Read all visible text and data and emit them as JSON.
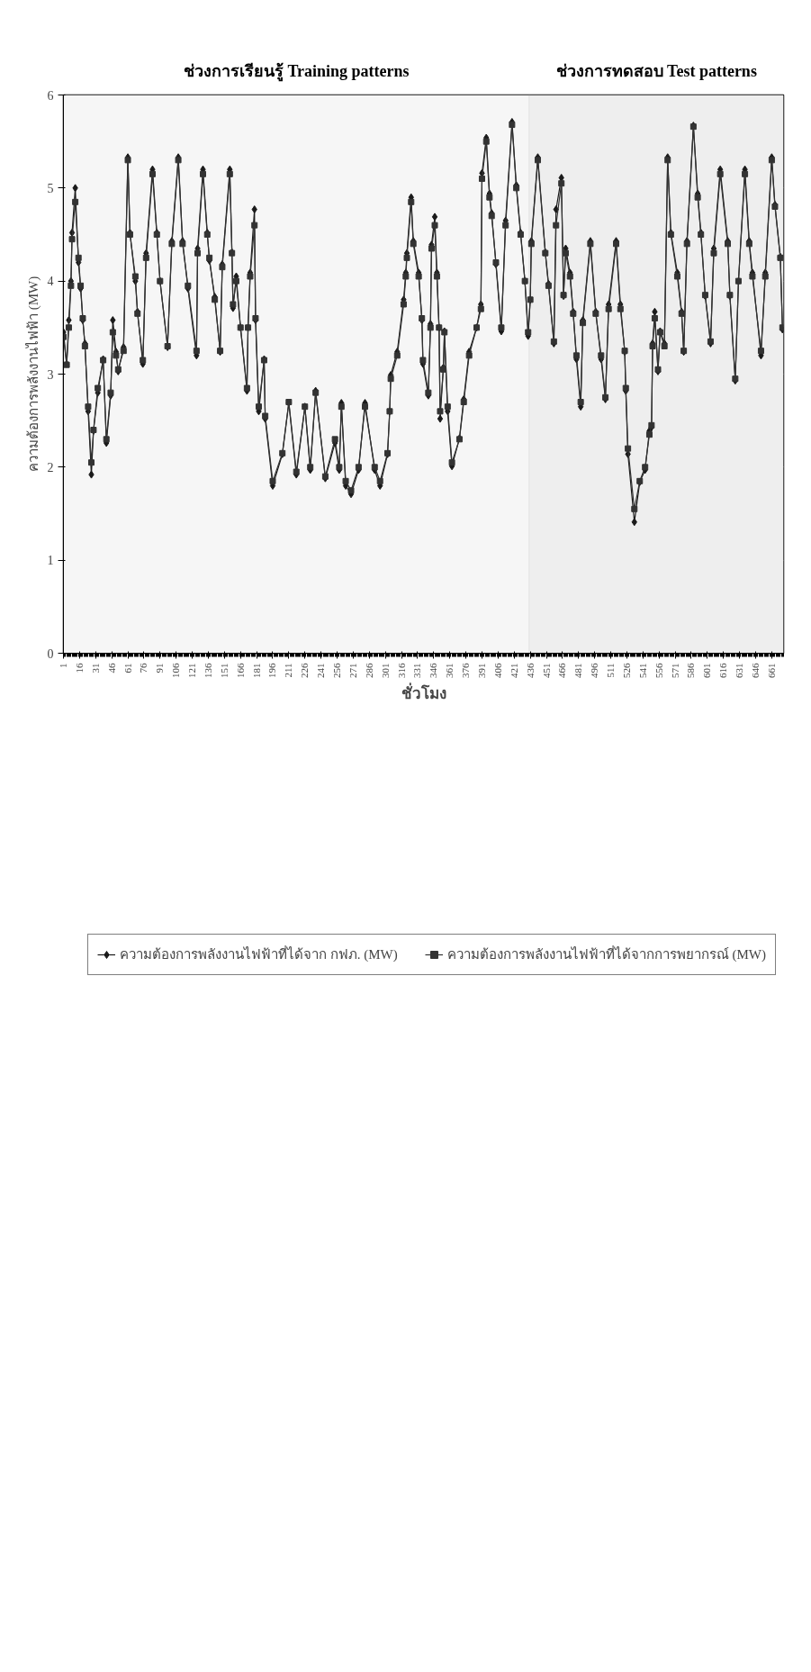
{
  "chart_data": {
    "type": "line",
    "xlabel": "ชั่วโมง",
    "ylabel": "ความต้องการพลังงานไฟฟ้า (MW)",
    "x": [
      1,
      4,
      6,
      8,
      9,
      12,
      15,
      17,
      19,
      21,
      24,
      27,
      29,
      33,
      38,
      41,
      45,
      47,
      50,
      52,
      57,
      61,
      63,
      68,
      70,
      75,
      78,
      84,
      88,
      91,
      98,
      102,
      108,
      112,
      117,
      125,
      126,
      131,
      135,
      137,
      142,
      147,
      149,
      156,
      158,
      159,
      162,
      166,
      172,
      173,
      175,
      179,
      180,
      183,
      188,
      189,
      196,
      205,
      211,
      218,
      226,
      231,
      236,
      245,
      254,
      258,
      260,
      264,
      269,
      276,
      282,
      291,
      296,
      303,
      305,
      306,
      312,
      318,
      320,
      321,
      325,
      327,
      332,
      335,
      336,
      341,
      343,
      344,
      347,
      349,
      351,
      352,
      355,
      356,
      359,
      363,
      370,
      374,
      379,
      386,
      390,
      391,
      395,
      398,
      400,
      404,
      409,
      413,
      419,
      423,
      427,
      431,
      434,
      436,
      437,
      443,
      450,
      453,
      458,
      460,
      465,
      467,
      469,
      473,
      476,
      479,
      483,
      485,
      492,
      497,
      502,
      506,
      509,
      516,
      520,
      524,
      525,
      527,
      533,
      538,
      543,
      547,
      549,
      550,
      552,
      555,
      557,
      561,
      564,
      567,
      573,
      577,
      579,
      582,
      588,
      592,
      595,
      599,
      604,
      607,
      613,
      620,
      622,
      627,
      630,
      636,
      640,
      643,
      651,
      655,
      661,
      664,
      669,
      671
    ],
    "series": [
      {
        "name": "ความต้องการพลังงานไฟฟ้าที่ได้จาก กฟภ. (MW)",
        "color": "#1a1a1a",
        "marker": "diamond",
        "values": [
          3.45,
          3.11,
          3.58,
          4.0,
          4.52,
          5.0,
          4.2,
          3.92,
          3.58,
          3.33,
          2.6,
          1.92,
          2.39,
          2.8,
          3.16,
          2.26,
          2.77,
          3.58,
          3.24,
          3.03,
          3.29,
          5.33,
          4.52,
          4.0,
          3.67,
          3.11,
          4.3,
          5.2,
          4.52,
          4.0,
          3.29,
          4.43,
          5.33,
          4.43,
          3.92,
          3.2,
          4.35,
          5.2,
          4.52,
          4.22,
          3.83,
          3.24,
          4.18,
          5.2,
          4.31,
          3.71,
          4.05,
          3.5,
          2.82,
          3.5,
          4.09,
          4.77,
          3.58,
          2.6,
          3.16,
          2.52,
          1.8,
          2.14,
          2.69,
          1.92,
          2.65,
          1.97,
          2.82,
          1.88,
          2.26,
          1.97,
          2.69,
          1.8,
          1.71,
          1.97,
          2.69,
          1.97,
          1.8,
          2.14,
          2.6,
          2.99,
          3.24,
          3.8,
          4.09,
          4.3,
          4.9,
          4.43,
          4.09,
          3.58,
          3.11,
          2.77,
          3.54,
          4.39,
          4.69,
          4.09,
          3.5,
          2.52,
          3.07,
          3.46,
          2.6,
          2.01,
          2.31,
          2.73,
          3.24,
          3.5,
          3.75,
          5.16,
          5.54,
          4.94,
          4.73,
          4.18,
          3.46,
          4.65,
          5.71,
          5.03,
          4.52,
          4.0,
          3.41,
          3.8,
          4.43,
          5.33,
          4.31,
          3.97,
          3.33,
          4.77,
          5.11,
          3.84,
          4.35,
          4.09,
          3.67,
          3.16,
          2.65,
          3.58,
          4.43,
          3.67,
          3.16,
          2.73,
          3.75,
          4.43,
          3.75,
          3.24,
          2.82,
          2.14,
          1.41,
          1.84,
          1.97,
          2.39,
          2.43,
          3.33,
          3.67,
          3.03,
          3.46,
          3.33,
          5.33,
          4.52,
          4.09,
          3.67,
          3.24,
          4.43,
          5.67,
          4.94,
          4.52,
          3.84,
          3.33,
          4.35,
          5.2,
          4.43,
          3.84,
          2.93,
          4.0,
          5.2,
          4.43,
          4.09,
          3.2,
          4.09,
          5.33,
          4.82,
          4.26,
          3.48
        ]
      },
      {
        "name": "ความต้องการพลังงานไฟฟ้าที่ได้จากการพยากรณ์ (MW)",
        "color": "#333333",
        "marker": "square",
        "values": [
          3.4,
          3.1,
          3.5,
          3.95,
          4.45,
          4.85,
          4.25,
          3.95,
          3.6,
          3.3,
          2.65,
          2.05,
          2.4,
          2.85,
          3.15,
          2.3,
          2.8,
          3.45,
          3.2,
          3.05,
          3.25,
          5.3,
          4.5,
          4.05,
          3.65,
          3.15,
          4.25,
          5.15,
          4.5,
          4.0,
          3.3,
          4.4,
          5.3,
          4.4,
          3.95,
          3.25,
          4.3,
          5.15,
          4.5,
          4.25,
          3.8,
          3.25,
          4.15,
          5.15,
          4.3,
          3.75,
          4.0,
          3.5,
          2.85,
          3.5,
          4.05,
          4.6,
          3.6,
          2.65,
          3.15,
          2.55,
          1.85,
          2.15,
          2.7,
          1.95,
          2.65,
          2.0,
          2.8,
          1.9,
          2.3,
          2.0,
          2.65,
          1.85,
          1.75,
          2.0,
          2.65,
          2.0,
          1.85,
          2.15,
          2.6,
          2.95,
          3.2,
          3.75,
          4.05,
          4.25,
          4.85,
          4.4,
          4.05,
          3.6,
          3.15,
          2.8,
          3.5,
          4.35,
          4.6,
          4.05,
          3.5,
          2.6,
          3.05,
          3.45,
          2.65,
          2.05,
          2.3,
          2.7,
          3.2,
          3.5,
          3.7,
          5.1,
          5.5,
          4.9,
          4.7,
          4.2,
          3.5,
          4.6,
          5.68,
          5.0,
          4.5,
          4.0,
          3.45,
          3.8,
          4.4,
          5.3,
          4.3,
          3.95,
          3.35,
          4.6,
          5.05,
          3.85,
          4.3,
          4.05,
          3.65,
          3.2,
          2.7,
          3.55,
          4.4,
          3.65,
          3.2,
          2.75,
          3.7,
          4.4,
          3.7,
          3.25,
          2.85,
          2.2,
          1.55,
          1.85,
          2.0,
          2.35,
          2.45,
          3.3,
          3.6,
          3.05,
          3.45,
          3.3,
          5.3,
          4.5,
          4.05,
          3.65,
          3.25,
          4.4,
          5.66,
          4.9,
          4.5,
          3.85,
          3.35,
          4.3,
          5.15,
          4.4,
          3.85,
          2.95,
          4.0,
          5.15,
          4.4,
          4.05,
          3.25,
          4.05,
          5.3,
          4.8,
          4.25,
          3.5
        ]
      }
    ],
    "xlim": [
      1,
      672
    ],
    "xticks": [
      1,
      16,
      31,
      46,
      61,
      76,
      91,
      106,
      121,
      136,
      151,
      166,
      181,
      196,
      211,
      226,
      241,
      256,
      271,
      286,
      301,
      316,
      331,
      346,
      361,
      376,
      391,
      406,
      421,
      436,
      451,
      466,
      481,
      496,
      511,
      526,
      541,
      556,
      571,
      586,
      601,
      616,
      631,
      646,
      661
    ],
    "ylim": [
      0,
      6
    ],
    "yticks": [
      0,
      1,
      2,
      3,
      4,
      5,
      6
    ],
    "grid": "y",
    "legend": "bottom",
    "line_style": "solid",
    "bands": [
      {
        "axis": "x",
        "from": 1,
        "to": 435,
        "label": "ช่วงการเรียนรู้ Training patterns",
        "color": "#f6f6f6"
      },
      {
        "axis": "x",
        "from": 435,
        "to": 672,
        "label": "ช่วงการทดสอบ Test patterns",
        "color": "#eeeeee"
      }
    ]
  }
}
